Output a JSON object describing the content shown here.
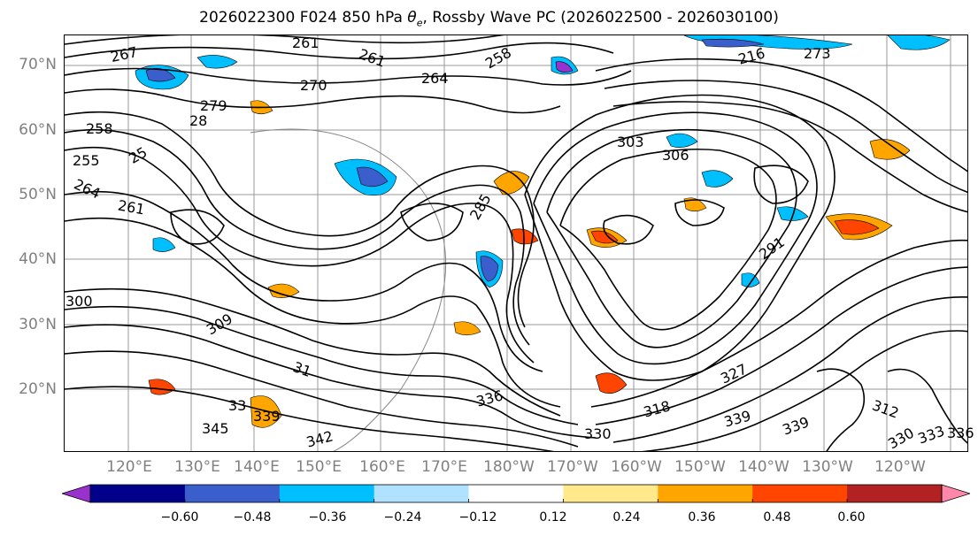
{
  "title": {
    "prefix": "2026022300 F024 850 hPa ",
    "symbol": "θ",
    "subscript": "e",
    "suffix": ", Rossby Wave PC (2026022500 - 2026030100)"
  },
  "map": {
    "lat_labels": [
      "70°N",
      "60°N",
      "50°N",
      "40°N",
      "30°N",
      "20°N"
    ],
    "lon_labels": [
      "120°E",
      "130°E",
      "140°E",
      "150°E",
      "160°E",
      "170°E",
      "180°W",
      "170°W",
      "160°W",
      "150°W",
      "140°W",
      "130°W",
      "120°W"
    ],
    "contour_labels": [
      {
        "text": "261",
        "anchor": "top-left-center"
      },
      {
        "text": "267"
      },
      {
        "text": "261"
      },
      {
        "text": "264"
      },
      {
        "text": "258"
      },
      {
        "text": "270"
      },
      {
        "text": "279"
      },
      {
        "text": "28"
      },
      {
        "text": "258"
      },
      {
        "text": "255"
      },
      {
        "text": "25"
      },
      {
        "text": "264"
      },
      {
        "text": "261"
      },
      {
        "text": "216"
      },
      {
        "text": "273"
      },
      {
        "text": "303"
      },
      {
        "text": "306"
      },
      {
        "text": "285"
      },
      {
        "text": "291"
      },
      {
        "text": "300"
      },
      {
        "text": "309"
      },
      {
        "text": "31"
      },
      {
        "text": "327"
      },
      {
        "text": "336"
      },
      {
        "text": "318"
      },
      {
        "text": "339"
      },
      {
        "text": "330"
      },
      {
        "text": "342"
      },
      {
        "text": "345"
      },
      {
        "text": "339"
      },
      {
        "text": "33"
      },
      {
        "text": "339"
      },
      {
        "text": "330"
      },
      {
        "text": "333"
      },
      {
        "text": "336"
      },
      {
        "text": "312"
      }
    ]
  },
  "colorbar": {
    "colors": [
      "#9932cc",
      "#00008b",
      "#3a5fcd",
      "#00bfff",
      "#b0e2ff",
      "#ffffff",
      "#ffe98a",
      "#ffa500",
      "#ff4500",
      "#b22222",
      "#ff88aa"
    ],
    "extend_low_color": "#9932cc",
    "extend_high_color": "#ff88aa",
    "ticks": [
      "−0.60",
      "−0.48",
      "−0.36",
      "−0.24",
      "−0.12",
      "0.12",
      "0.24",
      "0.36",
      "0.48",
      "0.60"
    ]
  }
}
